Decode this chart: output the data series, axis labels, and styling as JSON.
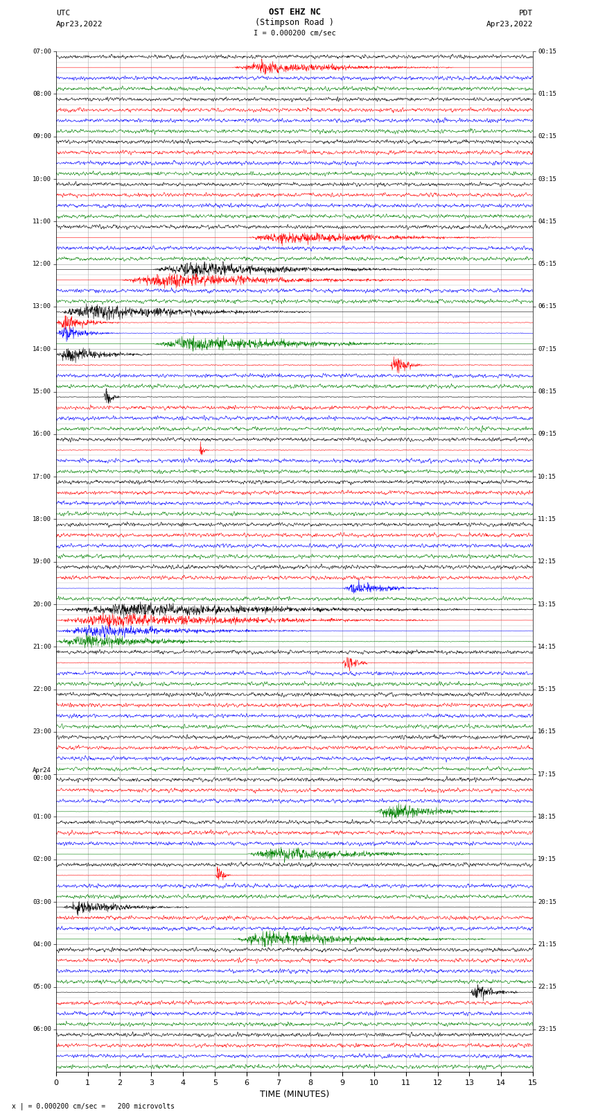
{
  "title_line1": "OST EHZ NC",
  "title_line2": "(Stimpson Road )",
  "scale_text": "I = 0.000200 cm/sec",
  "left_label": "UTC",
  "left_date": "Apr23,2022",
  "right_label": "PDT",
  "right_date": "Apr23,2022",
  "bottom_label": "TIME (MINUTES)",
  "footnote": "x | = 0.000200 cm/sec =   200 microvolts",
  "utc_times": [
    "07:00",
    "08:00",
    "09:00",
    "10:00",
    "11:00",
    "12:00",
    "13:00",
    "14:00",
    "15:00",
    "16:00",
    "17:00",
    "18:00",
    "19:00",
    "20:00",
    "21:00",
    "22:00",
    "23:00",
    "Apr24\n00:00",
    "01:00",
    "02:00",
    "03:00",
    "04:00",
    "05:00",
    "06:00"
  ],
  "pdt_times": [
    "00:15",
    "01:15",
    "02:15",
    "03:15",
    "04:15",
    "05:15",
    "06:15",
    "07:15",
    "08:15",
    "09:15",
    "10:15",
    "11:15",
    "12:15",
    "13:15",
    "14:15",
    "15:15",
    "16:15",
    "17:15",
    "18:15",
    "19:15",
    "20:15",
    "21:15",
    "22:15",
    "23:15"
  ],
  "n_hours": 24,
  "n_minutes": 15,
  "traces_per_hour": 4,
  "colors_cycle": [
    "black",
    "red",
    "blue",
    "green"
  ],
  "fig_width": 8.5,
  "fig_height": 16.13,
  "bg_color": "white",
  "grid_color": "#aaaaaa",
  "noise_base": 0.006,
  "seed": 42
}
